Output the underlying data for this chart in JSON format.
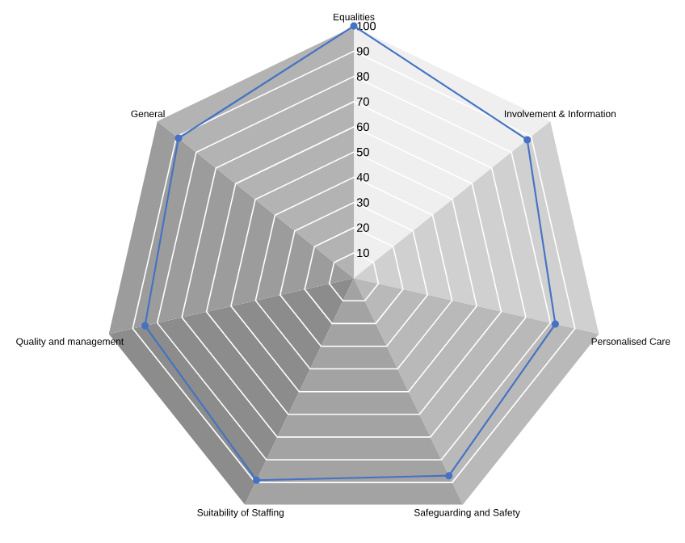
{
  "chart_data": {
    "type": "radar",
    "categories": [
      "Equalities",
      "Involvement & Information",
      "Personalised Care",
      "Safeguarding and Safety",
      "Suitability of Staffing",
      "Quality and management",
      "General"
    ],
    "series": [
      {
        "color": "#4472c4",
        "values": [
          100,
          88,
          82,
          87,
          89,
          85,
          89
        ]
      }
    ],
    "ylim": [
      0,
      100
    ],
    "yticks": [
      10,
      20,
      30,
      40,
      50,
      60,
      70,
      80,
      90,
      100
    ],
    "grid": true,
    "marker": "circle",
    "line_style": "solid"
  }
}
